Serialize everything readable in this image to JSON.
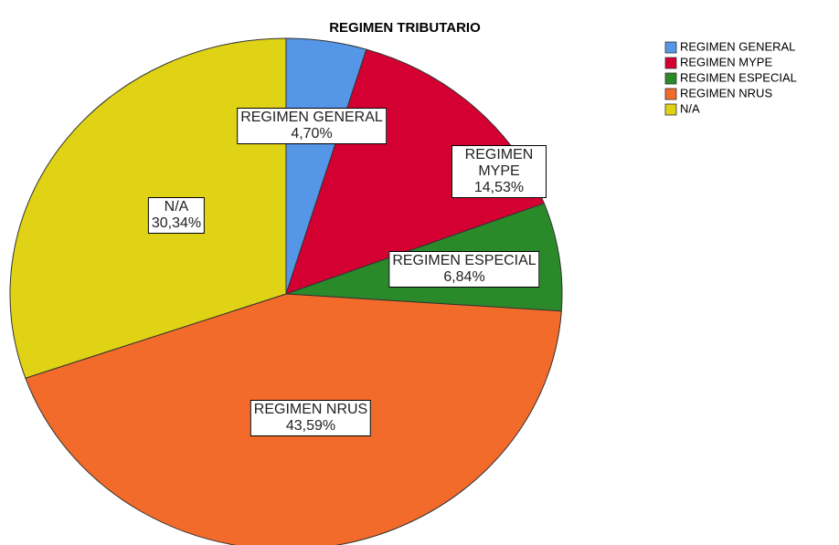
{
  "chart_data": {
    "type": "pie",
    "title": "REGIMEN TRIBUTARIO",
    "categories": [
      "REGIMEN GENERAL",
      "REGIMEN MYPE",
      "REGIMEN ESPECIAL",
      "REGIMEN NRUS",
      "N/A"
    ],
    "values": [
      4.7,
      14.53,
      6.84,
      43.59,
      30.34
    ],
    "value_labels": [
      "4,70%",
      "14,53%",
      "6,84%",
      "43,59%",
      "30,34%"
    ],
    "colors": [
      "#5596e6",
      "#d50032",
      "#2a8a2a",
      "#f26b2a",
      "#e0d215"
    ],
    "legend": "top-right"
  }
}
